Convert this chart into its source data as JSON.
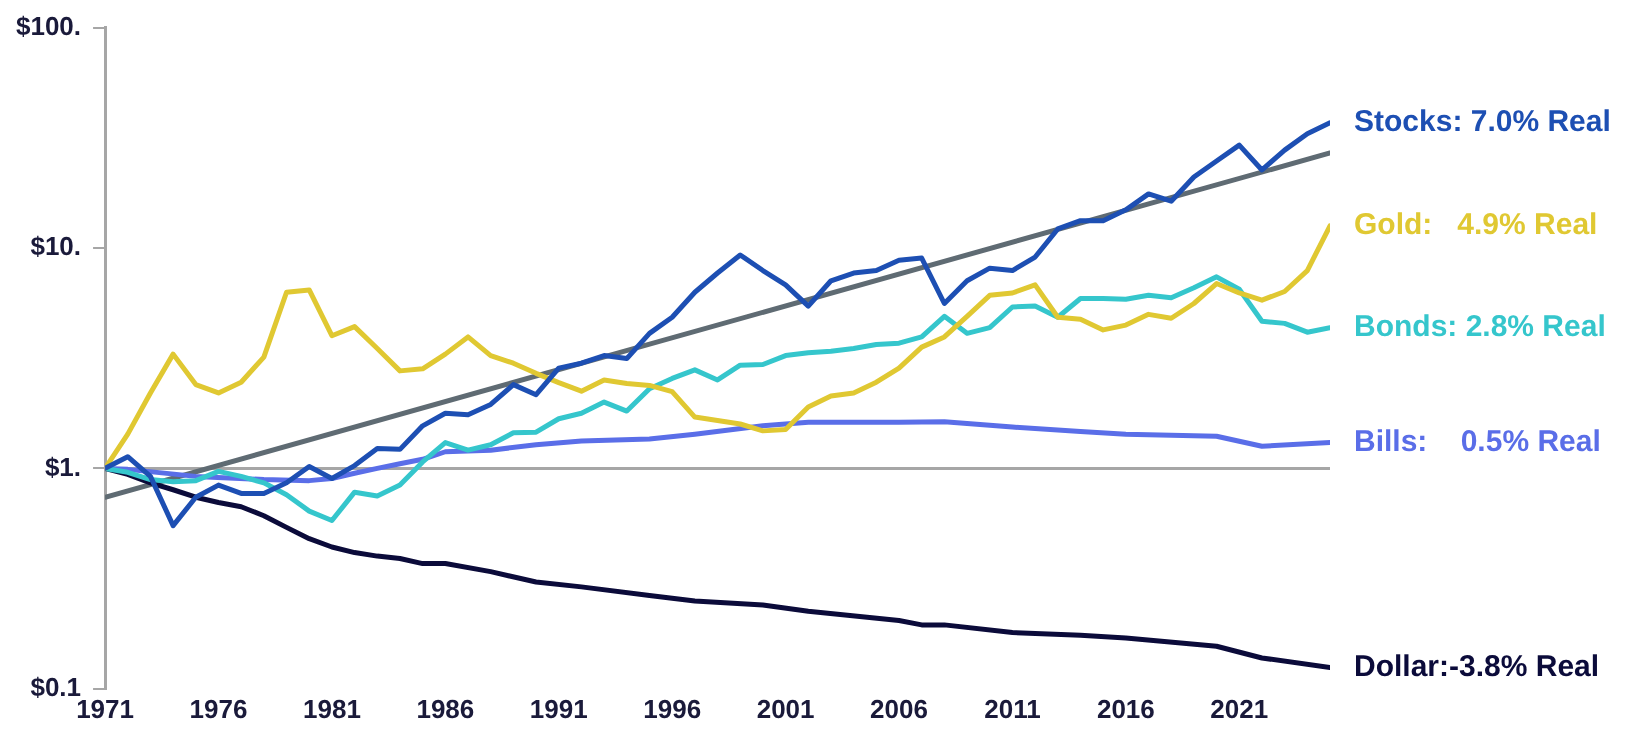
{
  "chart_data": {
    "type": "line",
    "log": "y",
    "legend": false,
    "grid": false,
    "marker": "none",
    "line_style": "solid",
    "x": [
      1971,
      1972,
      1973,
      1974,
      1975,
      1976,
      1977,
      1978,
      1979,
      1980,
      1981,
      1982,
      1983,
      1984,
      1985,
      1986,
      1987,
      1988,
      1989,
      1990,
      1991,
      1992,
      1993,
      1994,
      1995,
      1996,
      1997,
      1998,
      1999,
      2000,
      2001,
      2002,
      2003,
      2004,
      2005,
      2006,
      2007,
      2008,
      2009,
      2010,
      2011,
      2012,
      2013,
      2014,
      2015,
      2016,
      2017,
      2018,
      2019,
      2020,
      2021,
      2022,
      2023,
      2024,
      2025
    ],
    "xlim": [
      1971,
      2025
    ],
    "xticks": [
      1971,
      1976,
      1981,
      1986,
      1991,
      1996,
      2001,
      2006,
      2011,
      2016,
      2021
    ],
    "ylim": [
      0.1,
      100
    ],
    "yticks": [
      {
        "value": 0.1,
        "label": "$0.1"
      },
      {
        "value": 1,
        "label": "$1."
      },
      {
        "value": 10,
        "label": "$10."
      },
      {
        "value": 100,
        "label": "$100."
      }
    ],
    "ref_lines": [
      {
        "axis": "y",
        "value": 1,
        "color": "#a6a6a6"
      }
    ],
    "series": [
      {
        "name": "Stocks: 7.0% Real",
        "color": "#1d4fb3",
        "values": [
          1,
          1.13,
          0.92,
          0.55,
          0.74,
          0.84,
          0.77,
          0.77,
          0.86,
          1.02,
          0.9,
          1.03,
          1.23,
          1.22,
          1.56,
          1.78,
          1.75,
          1.95,
          2.4,
          2.16,
          2.85,
          3.0,
          3.25,
          3.15,
          4.1,
          4.85,
          6.3,
          7.7,
          9.3,
          7.9,
          6.8,
          5.45,
          7.1,
          7.7,
          7.9,
          8.8,
          9.0,
          5.6,
          7.1,
          8.1,
          7.9,
          9.1,
          12.2,
          13.3,
          13.3,
          14.9,
          17.6,
          16.3,
          21,
          24.8,
          29.3,
          22.6,
          27.8,
          33,
          37
        ]
      },
      {
        "name": "Gold:   4.9% Real",
        "color": "#e0c832",
        "values": [
          1,
          1.43,
          2.2,
          3.3,
          2.4,
          2.2,
          2.46,
          3.2,
          6.3,
          6.45,
          4.0,
          4.4,
          3.5,
          2.77,
          2.83,
          3.3,
          3.95,
          3.25,
          3.0,
          2.7,
          2.45,
          2.24,
          2.52,
          2.43,
          2.38,
          2.23,
          1.71,
          1.65,
          1.59,
          1.48,
          1.5,
          1.9,
          2.13,
          2.2,
          2.46,
          2.85,
          3.55,
          3.95,
          4.9,
          6.1,
          6.25,
          6.8,
          4.85,
          4.75,
          4.25,
          4.47,
          5.0,
          4.8,
          5.6,
          6.9,
          6.25,
          5.8,
          6.35,
          7.9,
          12.6
        ]
      },
      {
        "name": "Bonds: 2.8% Real",
        "color": "#35c6cc",
        "values": [
          1,
          0.96,
          0.89,
          0.87,
          0.88,
          0.97,
          0.92,
          0.86,
          0.76,
          0.64,
          0.58,
          0.78,
          0.75,
          0.84,
          1.07,
          1.31,
          1.21,
          1.28,
          1.45,
          1.46,
          1.68,
          1.78,
          2.0,
          1.82,
          2.3,
          2.56,
          2.8,
          2.52,
          2.94,
          2.96,
          3.25,
          3.35,
          3.4,
          3.5,
          3.65,
          3.7,
          3.95,
          4.9,
          4.1,
          4.35,
          5.4,
          5.45,
          4.85,
          5.9,
          5.9,
          5.85,
          6.1,
          5.95,
          6.6,
          7.4,
          6.5,
          4.65,
          4.55,
          4.15,
          4.35
        ]
      },
      {
        "name": "Bills:    0.5% Real",
        "color": "#5a6ee8",
        "x": [
          1971,
          1972,
          1975,
          1978,
          1980,
          1981,
          1982,
          1983,
          1984,
          1985,
          1986,
          1988,
          1990,
          1992,
          1995,
          1997,
          2000,
          2002,
          2003,
          2006,
          2008,
          2011,
          2014,
          2016,
          2020,
          2022,
          2025
        ],
        "values": [
          1,
          0.99,
          0.92,
          0.89,
          0.88,
          0.9,
          0.95,
          1.0,
          1.05,
          1.1,
          1.19,
          1.21,
          1.28,
          1.33,
          1.36,
          1.43,
          1.56,
          1.62,
          1.62,
          1.62,
          1.63,
          1.54,
          1.47,
          1.43,
          1.4,
          1.26,
          1.31
        ]
      },
      {
        "name": "Dollar:-3.8% Real",
        "color": "#0b0b3a",
        "x": [
          1971,
          1972,
          1973,
          1974,
          1975,
          1976,
          1977,
          1978,
          1979,
          1980,
          1981,
          1982,
          1983,
          1984,
          1985,
          1986,
          1988,
          1990,
          1992,
          1995,
          1997,
          2000,
          2002,
          2006,
          2007,
          2008,
          2011,
          2014,
          2016,
          2020,
          2022,
          2025
        ],
        "values": [
          1,
          0.94,
          0.86,
          0.8,
          0.74,
          0.7,
          0.67,
          0.61,
          0.54,
          0.48,
          0.44,
          0.415,
          0.4,
          0.39,
          0.37,
          0.37,
          0.34,
          0.305,
          0.29,
          0.265,
          0.25,
          0.24,
          0.225,
          0.204,
          0.195,
          0.195,
          0.18,
          0.175,
          0.17,
          0.156,
          0.138,
          0.125
        ]
      },
      {
        "type": "line",
        "color": "#5f6b73",
        "x": [
          1971,
          2025
        ],
        "values": [
          0.74,
          27
        ]
      }
    ]
  }
}
